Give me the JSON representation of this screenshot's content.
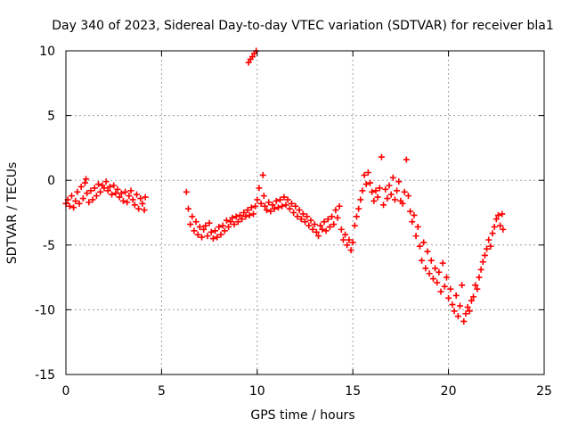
{
  "chart_data": {
    "type": "scatter",
    "title": "Day 340 of 2023, Sidereal Day-to-day VTEC variation (SDTVAR) for receiver bla1",
    "xlabel": "GPS time / hours",
    "ylabel": "SDTVAR / TECUs",
    "xlim": [
      0,
      25
    ],
    "ylim": [
      -15,
      10
    ],
    "xticks": [
      0,
      5,
      10,
      15,
      20,
      25
    ],
    "yticks": [
      10,
      5,
      0,
      -5,
      -10,
      -15
    ],
    "grid": true,
    "marker": "+",
    "color": "#ff0000",
    "series": [
      {
        "name": "SDTVAR",
        "points": [
          [
            0.0,
            -1.8
          ],
          [
            0.1,
            -1.5
          ],
          [
            0.2,
            -2.0
          ],
          [
            0.3,
            -1.2
          ],
          [
            0.4,
            -2.1
          ],
          [
            0.5,
            -1.6
          ],
          [
            0.6,
            -0.9
          ],
          [
            0.7,
            -1.8
          ],
          [
            0.8,
            -0.5
          ],
          [
            0.9,
            -1.4
          ],
          [
            1.0,
            -0.2
          ],
          [
            1.05,
            0.1
          ],
          [
            1.1,
            -1.0
          ],
          [
            1.2,
            -1.7
          ],
          [
            1.3,
            -0.8
          ],
          [
            1.4,
            -1.5
          ],
          [
            1.5,
            -0.6
          ],
          [
            1.6,
            -1.2
          ],
          [
            1.7,
            -0.3
          ],
          [
            1.8,
            -0.9
          ],
          [
            1.9,
            -0.4
          ],
          [
            2.0,
            -0.6
          ],
          [
            2.1,
            -0.1
          ],
          [
            2.2,
            -0.8
          ],
          [
            2.3,
            -0.5
          ],
          [
            2.4,
            -1.1
          ],
          [
            2.5,
            -0.4
          ],
          [
            2.6,
            -1.0
          ],
          [
            2.7,
            -0.7
          ],
          [
            2.8,
            -1.3
          ],
          [
            2.9,
            -1.0
          ],
          [
            3.0,
            -1.6
          ],
          [
            3.1,
            -0.9
          ],
          [
            3.2,
            -1.7
          ],
          [
            3.3,
            -1.2
          ],
          [
            3.4,
            -0.8
          ],
          [
            3.5,
            -1.5
          ],
          [
            3.6,
            -1.9
          ],
          [
            3.7,
            -1.1
          ],
          [
            3.8,
            -2.2
          ],
          [
            3.9,
            -1.4
          ],
          [
            4.0,
            -1.8
          ],
          [
            4.1,
            -2.3
          ],
          [
            4.15,
            -1.3
          ],
          [
            6.3,
            -0.9
          ],
          [
            6.4,
            -2.2
          ],
          [
            6.5,
            -3.4
          ],
          [
            6.6,
            -2.8
          ],
          [
            6.7,
            -3.9
          ],
          [
            6.8,
            -3.2
          ],
          [
            6.9,
            -4.2
          ],
          [
            7.0,
            -3.6
          ],
          [
            7.1,
            -4.4
          ],
          [
            7.2,
            -3.8
          ],
          [
            7.3,
            -3.5
          ],
          [
            7.4,
            -4.3
          ],
          [
            7.5,
            -3.3
          ],
          [
            7.6,
            -4.0
          ],
          [
            7.7,
            -4.5
          ],
          [
            7.8,
            -3.9
          ],
          [
            7.9,
            -4.4
          ],
          [
            8.0,
            -3.6
          ],
          [
            8.1,
            -4.2
          ],
          [
            8.2,
            -3.5
          ],
          [
            8.3,
            -3.9
          ],
          [
            8.4,
            -3.1
          ],
          [
            8.5,
            -3.6
          ],
          [
            8.6,
            -3.2
          ],
          [
            8.7,
            -2.9
          ],
          [
            8.8,
            -3.4
          ],
          [
            8.9,
            -2.8
          ],
          [
            9.0,
            -3.2
          ],
          [
            9.1,
            -2.7
          ],
          [
            9.2,
            -3.0
          ],
          [
            9.3,
            -2.5
          ],
          [
            9.4,
            -2.8
          ],
          [
            9.5,
            -2.3
          ],
          [
            9.6,
            -2.7
          ],
          [
            9.7,
            -2.1
          ],
          [
            9.8,
            -2.6
          ],
          [
            9.9,
            -2.0
          ],
          [
            10.0,
            -1.5
          ],
          [
            10.1,
            -0.6
          ],
          [
            10.2,
            -1.8
          ],
          [
            10.3,
            0.4
          ],
          [
            10.35,
            -1.2
          ],
          [
            10.4,
            -2.0
          ],
          [
            10.5,
            -2.3
          ],
          [
            10.6,
            -1.7
          ],
          [
            10.7,
            -2.4
          ],
          [
            10.8,
            -1.9
          ],
          [
            10.9,
            -2.2
          ],
          [
            11.0,
            -1.6
          ],
          [
            11.1,
            -2.1
          ],
          [
            11.2,
            -1.5
          ],
          [
            11.3,
            -2.0
          ],
          [
            11.4,
            -1.3
          ],
          [
            11.5,
            -1.9
          ],
          [
            11.6,
            -1.5
          ],
          [
            11.7,
            -2.2
          ],
          [
            11.8,
            -1.8
          ],
          [
            11.9,
            -2.5
          ],
          [
            12.0,
            -2.0
          ],
          [
            12.1,
            -2.8
          ],
          [
            12.2,
            -2.3
          ],
          [
            12.3,
            -3.0
          ],
          [
            12.4,
            -2.6
          ],
          [
            12.5,
            -3.2
          ],
          [
            12.6,
            -2.8
          ],
          [
            12.7,
            -3.5
          ],
          [
            12.8,
            -3.1
          ],
          [
            12.9,
            -3.8
          ],
          [
            13.0,
            -3.4
          ],
          [
            13.1,
            -4.0
          ],
          [
            13.2,
            -4.3
          ],
          [
            13.3,
            -3.5
          ],
          [
            13.4,
            -3.8
          ],
          [
            13.5,
            -3.2
          ],
          [
            13.6,
            -3.9
          ],
          [
            13.7,
            -3.0
          ],
          [
            13.8,
            -3.6
          ],
          [
            13.9,
            -2.8
          ],
          [
            14.0,
            -3.4
          ],
          [
            14.1,
            -2.3
          ],
          [
            14.2,
            -2.9
          ],
          [
            14.3,
            -2.0
          ],
          [
            14.4,
            -3.8
          ],
          [
            14.5,
            -4.6
          ],
          [
            14.6,
            -4.2
          ],
          [
            14.7,
            -5.0
          ],
          [
            14.8,
            -4.6
          ],
          [
            14.9,
            -5.4
          ],
          [
            15.0,
            -4.8
          ],
          [
            15.1,
            -3.5
          ],
          [
            15.2,
            -2.8
          ],
          [
            15.3,
            -2.2
          ],
          [
            15.4,
            -1.5
          ],
          [
            15.5,
            -0.8
          ],
          [
            15.6,
            0.4
          ],
          [
            15.7,
            -0.3
          ],
          [
            15.8,
            0.6
          ],
          [
            15.9,
            -0.2
          ],
          [
            16.0,
            -0.9
          ],
          [
            16.1,
            -1.6
          ],
          [
            16.2,
            -0.8
          ],
          [
            16.3,
            -1.3
          ],
          [
            16.4,
            -0.6
          ],
          [
            16.5,
            1.8
          ],
          [
            16.6,
            -1.9
          ],
          [
            16.7,
            -0.7
          ],
          [
            16.8,
            -1.4
          ],
          [
            16.9,
            -0.4
          ],
          [
            17.0,
            -1.1
          ],
          [
            17.1,
            0.2
          ],
          [
            17.2,
            -1.5
          ],
          [
            17.3,
            -0.8
          ],
          [
            17.4,
            -0.1
          ],
          [
            17.5,
            -1.6
          ],
          [
            17.6,
            -1.8
          ],
          [
            17.7,
            -0.9
          ],
          [
            17.8,
            1.6
          ],
          [
            17.9,
            -1.2
          ],
          [
            18.0,
            -2.4
          ],
          [
            18.1,
            -3.2
          ],
          [
            18.2,
            -2.7
          ],
          [
            18.3,
            -4.3
          ],
          [
            18.4,
            -3.6
          ],
          [
            18.5,
            -5.1
          ],
          [
            18.6,
            -6.2
          ],
          [
            18.7,
            -4.8
          ],
          [
            18.8,
            -6.8
          ],
          [
            18.9,
            -5.5
          ],
          [
            19.0,
            -7.2
          ],
          [
            19.1,
            -6.2
          ],
          [
            19.2,
            -7.6
          ],
          [
            19.3,
            -6.8
          ],
          [
            19.4,
            -7.9
          ],
          [
            19.5,
            -7.1
          ],
          [
            19.6,
            -8.6
          ],
          [
            19.7,
            -6.4
          ],
          [
            19.8,
            -8.2
          ],
          [
            19.9,
            -7.5
          ],
          [
            20.0,
            -9.1
          ],
          [
            20.1,
            -8.4
          ],
          [
            20.2,
            -9.6
          ],
          [
            20.3,
            -10.1
          ],
          [
            20.4,
            -8.9
          ],
          [
            20.5,
            -10.5
          ],
          [
            20.6,
            -9.7
          ],
          [
            20.7,
            -8.1
          ],
          [
            20.8,
            -10.9
          ],
          [
            20.9,
            -10.3
          ],
          [
            21.0,
            -9.8
          ],
          [
            21.1,
            -10.1
          ],
          [
            21.2,
            -9.3
          ],
          [
            21.3,
            -9.0
          ],
          [
            21.4,
            -8.1
          ],
          [
            21.5,
            -8.4
          ],
          [
            21.6,
            -7.5
          ],
          [
            21.7,
            -6.9
          ],
          [
            21.8,
            -6.3
          ],
          [
            21.9,
            -5.8
          ],
          [
            22.0,
            -5.3
          ],
          [
            22.1,
            -4.6
          ],
          [
            22.2,
            -5.1
          ],
          [
            22.3,
            -4.1
          ],
          [
            22.4,
            -3.6
          ],
          [
            22.5,
            -3.0
          ],
          [
            22.6,
            -2.7
          ],
          [
            22.7,
            -3.5
          ],
          [
            22.8,
            -2.6
          ],
          [
            22.85,
            -3.8
          ],
          [
            9.55,
            9.1
          ],
          [
            9.65,
            9.35
          ],
          [
            9.75,
            9.55
          ],
          [
            9.85,
            9.8
          ],
          [
            9.95,
            10.0
          ]
        ]
      }
    ]
  }
}
